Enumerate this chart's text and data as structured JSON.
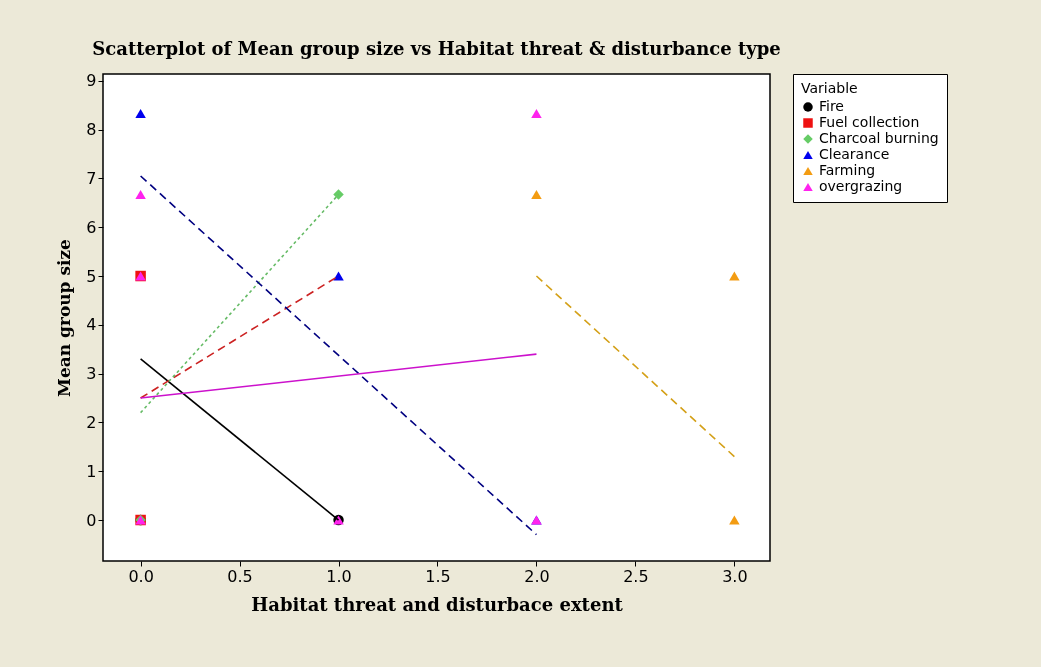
{
  "chart_data": {
    "type": "scatter",
    "title": "Scatterplot of Mean group size vs Habitat threat & disturbance type",
    "xlabel": "Habitat threat and disturbace extent",
    "ylabel": "Mean group size",
    "legend_title": "Variable",
    "legend": "right",
    "grid": false,
    "xlim": [
      -0.19,
      3.18
    ],
    "ylim": [
      -0.84,
      9.14
    ],
    "xticks": [
      {
        "value": 0,
        "label": "0.0"
      },
      {
        "value": 0.5,
        "label": "0.5"
      },
      {
        "value": 1,
        "label": "1.0"
      },
      {
        "value": 1.5,
        "label": "1.5"
      },
      {
        "value": 2,
        "label": "2.0"
      },
      {
        "value": 2.5,
        "label": "2.5"
      },
      {
        "value": 3,
        "label": "3.0"
      }
    ],
    "yticks": [
      0,
      1,
      2,
      3,
      4,
      5,
      6,
      7,
      8,
      9
    ],
    "series": [
      {
        "name": "Fire",
        "marker": "circle",
        "color": "#000000",
        "x": [
          0,
          1
        ],
        "values": [
          0,
          0
        ]
      },
      {
        "name": "Fuel  collection",
        "marker": "square",
        "color": "#ee1111",
        "x": [
          0,
          0
        ],
        "values": [
          5,
          0
        ]
      },
      {
        "name": "Charcoal burning",
        "marker": "diamond",
        "color": "#66cc66",
        "x": [
          0,
          1
        ],
        "values": [
          0,
          6.67
        ]
      },
      {
        "name": "Clearance",
        "marker": "triangle",
        "color": "#0000ee",
        "x": [
          0,
          1,
          2
        ],
        "values": [
          8.33,
          5,
          0
        ]
      },
      {
        "name": "Farming",
        "marker": "triangle",
        "color": "#f39c12",
        "x": [
          2,
          3,
          3
        ],
        "values": [
          6.67,
          5,
          0
        ]
      },
      {
        "name": "overgrazing",
        "marker": "triangle",
        "color": "#ff22ee",
        "x": [
          0,
          0,
          0,
          1,
          2,
          2
        ],
        "values": [
          6.67,
          5,
          0,
          0,
          8.33,
          0
        ]
      },
      {
        "type": "line",
        "color": "#000000",
        "line_style": "solid",
        "x": [
          0,
          1
        ],
        "values": [
          3.3,
          0
        ]
      },
      {
        "type": "line",
        "color": "#cc2222",
        "line_style": "dashed",
        "x": [
          0,
          1
        ],
        "values": [
          2.5,
          5
        ]
      },
      {
        "type": "line",
        "color": "#66bb66",
        "line_style": "dotted",
        "x": [
          0,
          1
        ],
        "values": [
          2.2,
          6.67
        ]
      },
      {
        "type": "line",
        "color": "#000080",
        "line_style": "dashed",
        "x": [
          0,
          2
        ],
        "values": [
          7.05,
          -0.3
        ]
      },
      {
        "type": "line",
        "color": "#d4a017",
        "line_style": "dashed",
        "x": [
          2,
          3
        ],
        "values": [
          5,
          1.3
        ]
      },
      {
        "type": "line",
        "color": "#cc11cc",
        "line_style": "solid",
        "x": [
          0,
          2
        ],
        "values": [
          2.5,
          3.4
        ]
      }
    ]
  }
}
